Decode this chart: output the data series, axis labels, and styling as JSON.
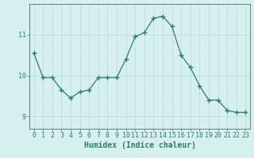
{
  "x": [
    0,
    1,
    2,
    3,
    4,
    5,
    6,
    7,
    8,
    9,
    10,
    11,
    12,
    13,
    14,
    15,
    16,
    17,
    18,
    19,
    20,
    21,
    22,
    23
  ],
  "y": [
    10.55,
    9.95,
    9.95,
    9.65,
    9.45,
    9.6,
    9.65,
    9.95,
    9.95,
    9.95,
    10.4,
    10.95,
    11.05,
    11.4,
    11.45,
    11.2,
    10.5,
    10.2,
    9.75,
    9.4,
    9.4,
    9.15,
    9.1,
    9.1
  ],
  "line_color": "#2d7d6e",
  "marker": "+",
  "marker_size": 4,
  "bg_color": "#d6f0f0",
  "grid_color_major": "#b8d8d8",
  "grid_color_minor": "#c8e8e8",
  "xlabel": "Humidex (Indice chaleur)",
  "yticks": [
    9,
    10,
    11
  ],
  "ylim": [
    8.7,
    11.75
  ],
  "xlim": [
    -0.5,
    23.5
  ],
  "xlabel_fontsize": 7,
  "tick_fontsize": 6
}
